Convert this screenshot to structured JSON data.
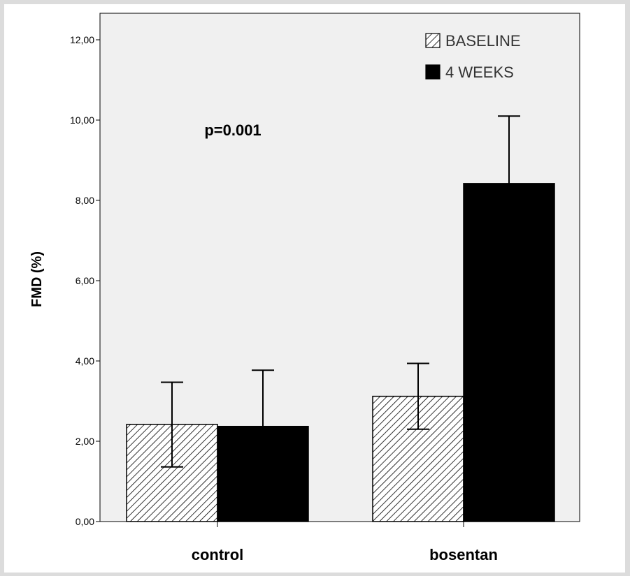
{
  "chart_data": {
    "type": "bar",
    "ylabel": "FMD (%)",
    "ylim": [
      0,
      12.6
    ],
    "yticks": [
      "0,00",
      "2,00",
      "4,00",
      "6,00",
      "8,00",
      "10,00",
      "12,00"
    ],
    "categories": [
      "control",
      "bosentan"
    ],
    "series": [
      {
        "name": "BASELINE",
        "pattern": "hatched",
        "values": [
          2.42,
          3.12
        ],
        "error_low": [
          1.36,
          2.3
        ],
        "error_high": [
          3.47,
          3.94
        ]
      },
      {
        "name": "4 WEEKS",
        "pattern": "solid",
        "color": "#000000",
        "values": [
          2.37,
          8.42
        ],
        "error_low": [
          2.37,
          8.42
        ],
        "error_high": [
          3.77,
          10.1
        ]
      }
    ],
    "annotations": [
      {
        "text": "p=0.001"
      }
    ],
    "legend": "top-right",
    "grid": false,
    "plot_background": "#f0f0f0"
  }
}
